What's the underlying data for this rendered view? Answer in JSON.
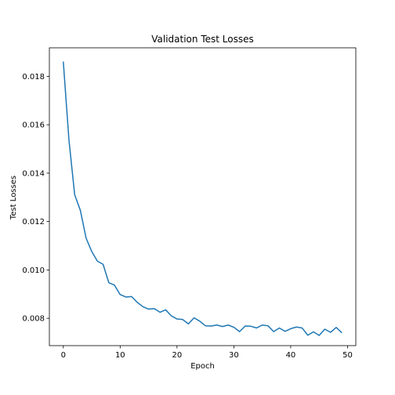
{
  "chart_data": {
    "type": "line",
    "title": "Validation Test Losses",
    "xlabel": "Epoch",
    "ylabel": "Test Losses",
    "xlim": [
      -2.45,
      51.45
    ],
    "ylim": [
      0.00687,
      0.01918
    ],
    "xticks": [
      0,
      10,
      20,
      30,
      40,
      50
    ],
    "yticks": [
      0.008,
      0.01,
      0.012,
      0.014,
      0.016,
      0.018
    ],
    "xtick_labels": [
      "0",
      "10",
      "20",
      "30",
      "40",
      "50"
    ],
    "ytick_labels": [
      "0.008",
      "0.010",
      "0.012",
      "0.014",
      "0.016",
      "0.018"
    ],
    "grid": false,
    "series": [
      {
        "color": "#1f77b4",
        "x": [
          0,
          1,
          2,
          3,
          4,
          5,
          6,
          7,
          8,
          9,
          10,
          11,
          12,
          13,
          14,
          15,
          16,
          17,
          18,
          19,
          20,
          21,
          22,
          23,
          24,
          25,
          26,
          27,
          28,
          29,
          30,
          31,
          32,
          33,
          34,
          35,
          36,
          37,
          38,
          39,
          40,
          41,
          42,
          43,
          44,
          45,
          46,
          47,
          48,
          49
        ],
        "values": [
          0.01861,
          0.01535,
          0.01311,
          0.01246,
          0.01132,
          0.01076,
          0.01036,
          0.01023,
          0.00947,
          0.00937,
          0.00898,
          0.00888,
          0.0089,
          0.00866,
          0.00848,
          0.00838,
          0.0084,
          0.00825,
          0.00835,
          0.0081,
          0.00797,
          0.00795,
          0.00777,
          0.00802,
          0.00788,
          0.00769,
          0.00768,
          0.00772,
          0.00766,
          0.00772,
          0.00763,
          0.00745,
          0.00768,
          0.00767,
          0.0076,
          0.00772,
          0.00769,
          0.00745,
          0.0076,
          0.00746,
          0.00757,
          0.00764,
          0.0076,
          0.0073,
          0.00744,
          0.00729,
          0.00755,
          0.00742,
          0.00762,
          0.0074
        ]
      }
    ]
  }
}
